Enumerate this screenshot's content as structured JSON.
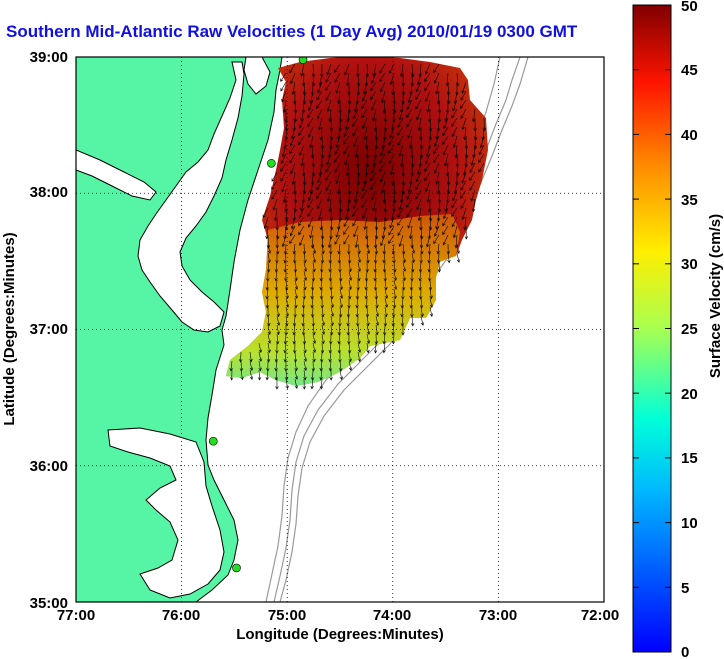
{
  "title": "Southern Mid-Atlantic Raw Velocities (1 Day Avg) 2010/01/19 0300 GMT",
  "map": {
    "xlabel": "Longitude (Degrees:Minutes)",
    "ylabel": "Latitude (Degrees:Minutes)",
    "x_ticks": [
      "77:00",
      "76:00",
      "75:00",
      "74:00",
      "73:00",
      "72:00"
    ],
    "y_ticks": [
      "35:00",
      "36:00",
      "37:00",
      "38:00",
      "39:00"
    ],
    "colors": {
      "land": "#55f5a5",
      "ocean": "#ffffff",
      "coast": "#000000",
      "bathymetry": "#9a9a9a",
      "station": "#22dd22",
      "grid": "#000000"
    }
  },
  "colorbar": {
    "label": "Surface Velocity (cm/s)",
    "min": 0,
    "max": 50,
    "ticks": [
      "0",
      "5",
      "10",
      "15",
      "20",
      "25",
      "30",
      "35",
      "40",
      "45",
      "50"
    ],
    "colormap": "jet"
  },
  "stations": [
    {
      "lon": -74.85,
      "lat": 38.98
    },
    {
      "lon": -75.15,
      "lat": 38.22
    },
    {
      "lon": -75.7,
      "lat": 36.18
    },
    {
      "lon": -75.48,
      "lat": 35.25
    }
  ]
}
